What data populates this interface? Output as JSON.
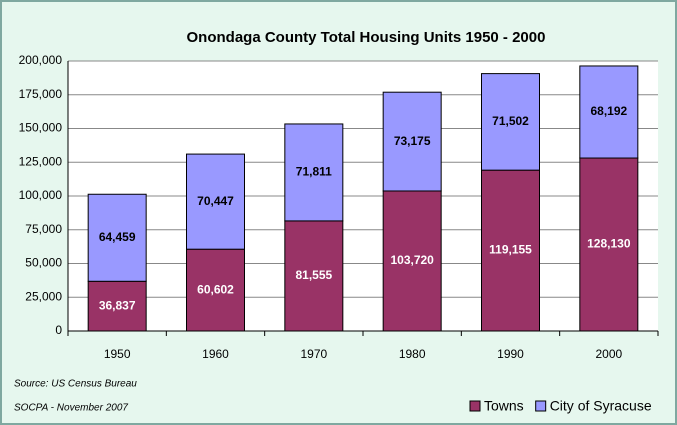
{
  "chart_data": {
    "type": "stacked_bar",
    "title": "Onondaga County Total Housing Units 1950 - 2000",
    "categories": [
      "1950",
      "1960",
      "1970",
      "1980",
      "1990",
      "2000"
    ],
    "series": [
      {
        "name": "Towns",
        "color": "#993366",
        "values": [
          36837,
          60602,
          81555,
          103720,
          119155,
          128130
        ],
        "value_labels": [
          "36,837",
          "60,602",
          "81,555",
          "103,720",
          "119,155",
          "128,130"
        ]
      },
      {
        "name": "City of Syracuse",
        "color": "#9999ff",
        "values": [
          64459,
          70447,
          71811,
          73175,
          71502,
          68192
        ],
        "value_labels": [
          "64,459",
          "70,447",
          "71,811",
          "73,175",
          "71,502",
          "68,192"
        ]
      }
    ],
    "ylim": [
      0,
      200000
    ],
    "yticks": [
      0,
      {
        "value": 25000,
        "label": "25,000"
      },
      {
        "value": 50000,
        "label": "50,000"
      },
      {
        "value": 75000,
        "label": "75,000"
      },
      {
        "value": 100000,
        "label": "100,000"
      },
      {
        "value": 125000,
        "label": "125,000"
      },
      {
        "value": 150000,
        "label": "150,000"
      },
      {
        "value": 175000,
        "label": "175,000"
      },
      {
        "value": 200000,
        "label": "200,000"
      }
    ],
    "grid": true,
    "annotations": [
      "Source:  US Census Bureau",
      "SOCPA - November 2007"
    ],
    "legend": "bottom-right"
  }
}
